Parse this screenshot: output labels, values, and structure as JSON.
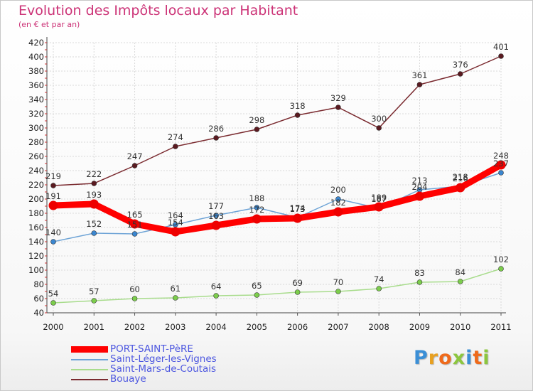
{
  "header": {
    "title": "Evolution des Impôts locaux par Habitant",
    "subtitle": "(en € et par an)"
  },
  "logo": {
    "text": "Proxiti",
    "letter_colors": [
      "#3b8fd6",
      "#e8a020",
      "#ef6a1b",
      "#8cc63f",
      "#3b8fd6",
      "#ef6a1b",
      "#8cc63f"
    ]
  },
  "chart_data": {
    "type": "line",
    "x": [
      "2000",
      "2001",
      "2002",
      "2003",
      "2004",
      "2005",
      "2006",
      "2007",
      "2008",
      "2009",
      "2010",
      "2011"
    ],
    "ylim": [
      40,
      420
    ],
    "yticks": [
      40,
      60,
      80,
      100,
      120,
      140,
      160,
      180,
      200,
      220,
      240,
      260,
      280,
      300,
      320,
      340,
      360,
      380,
      400,
      420
    ],
    "grid": true,
    "legend_position": "bottom-left",
    "series": [
      {
        "name": "Bouaye",
        "color": "#7a2a2f",
        "marker_color": "#5a1a20",
        "values": [
          219,
          222,
          247,
          274,
          286,
          298,
          318,
          329,
          300,
          361,
          376,
          401
        ]
      },
      {
        "name": "Saint-Mars-de-Coutais",
        "color": "#a8dc8c",
        "marker_color": "#7ccd4c",
        "values": [
          54,
          57,
          60,
          61,
          64,
          65,
          69,
          70,
          74,
          83,
          84,
          102
        ]
      },
      {
        "name": "Saint-Léger-les-Vignes",
        "color": "#6da3d6",
        "marker_color": "#3a86cf",
        "values": [
          140,
          152,
          151,
          164,
          177,
          188,
          174,
          200,
          187,
          213,
          218,
          237
        ]
      },
      {
        "name": "PORT-SAINT-PèRE",
        "color": "#ff0000",
        "marker_color": "#ee0000",
        "values": [
          191,
          193,
          165,
          154,
          163,
          172,
          173,
          182,
          189,
          204,
          216,
          248
        ]
      }
    ],
    "legend_order": [
      "PORT-SAINT-PèRE",
      "Saint-Léger-les-Vignes",
      "Saint-Mars-de-Coutais",
      "Bouaye"
    ]
  }
}
